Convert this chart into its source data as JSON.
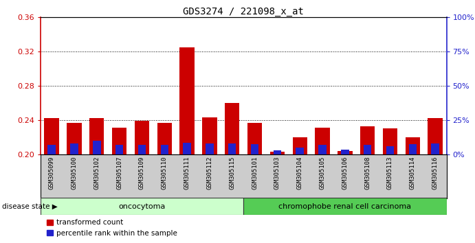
{
  "title": "GDS3274 / 221098_x_at",
  "samples": [
    "GSM305099",
    "GSM305100",
    "GSM305102",
    "GSM305107",
    "GSM305109",
    "GSM305110",
    "GSM305111",
    "GSM305112",
    "GSM305115",
    "GSM305101",
    "GSM305103",
    "GSM305104",
    "GSM305105",
    "GSM305106",
    "GSM305108",
    "GSM305113",
    "GSM305114",
    "GSM305116"
  ],
  "transformed_count": [
    0.242,
    0.237,
    0.242,
    0.231,
    0.239,
    0.237,
    0.325,
    0.243,
    0.26,
    0.237,
    0.203,
    0.22,
    0.231,
    0.204,
    0.233,
    0.23,
    0.22,
    0.242
  ],
  "percentile_rank": [
    7.0,
    8.0,
    10.0,
    7.0,
    7.0,
    7.0,
    8.5,
    8.0,
    8.0,
    7.5,
    3.0,
    5.0,
    7.0,
    3.5,
    7.0,
    6.0,
    7.5,
    8.0
  ],
  "bar_bottom": 0.2,
  "ylim_left": [
    0.2,
    0.36
  ],
  "ylim_right": [
    0,
    100
  ],
  "yticks_left": [
    0.2,
    0.24,
    0.28,
    0.32,
    0.36
  ],
  "yticks_right": [
    0,
    25,
    50,
    75,
    100
  ],
  "ytick_labels_right": [
    "0%",
    "25%",
    "50%",
    "75%",
    "100%"
  ],
  "group1_label": "oncocytoma",
  "group2_label": "chromophobe renal cell carcinoma",
  "group1_count": 9,
  "group2_count": 9,
  "disease_state_label": "disease state",
  "legend_red_label": "transformed count",
  "legend_blue_label": "percentile rank within the sample",
  "bar_color_red": "#cc0000",
  "bar_color_blue": "#2222cc",
  "group1_bg": "#ccffcc",
  "group2_bg": "#55cc55",
  "bar_width": 0.65,
  "pct_bar_width": 0.35,
  "background_color": "#ffffff",
  "xticklabel_bg": "#cccccc"
}
